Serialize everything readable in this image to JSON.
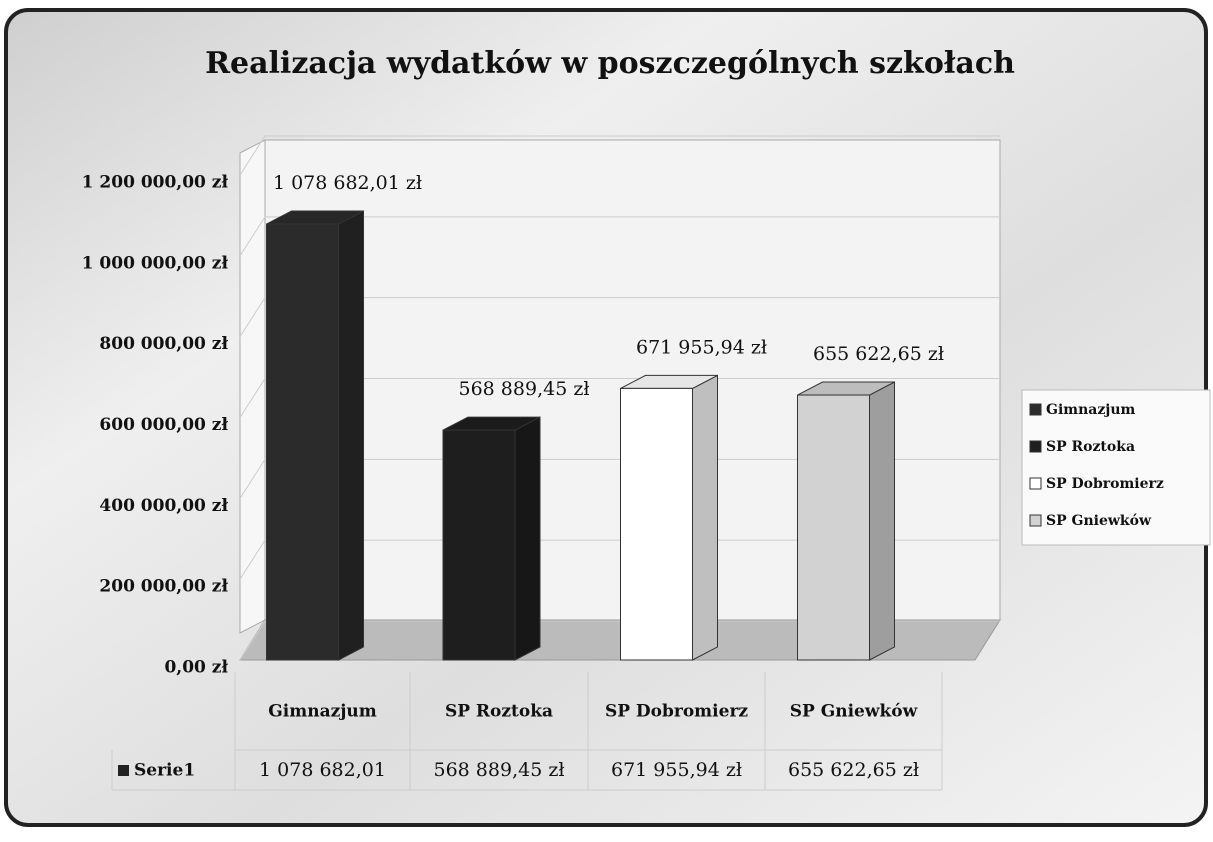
{
  "chart_data": {
    "type": "bar3d",
    "title": "Realizacja wydatków w poszczególnych szkołach",
    "categories": [
      "Gimnazjum",
      "SP Roztoka",
      "SP Dobromierz",
      "SP Gniewków"
    ],
    "colors": [
      "#2b2b2b",
      "#1e1e1e",
      "#ffffff",
      "#d2d2d2"
    ],
    "series": [
      {
        "name": "Serie1",
        "values": [
          1078682.01,
          568889.45,
          671955.94,
          655622.65
        ],
        "value_labels": [
          "1 078 682,01 zł",
          "568 889,45 zł",
          "671 955,94 zł",
          "655 622,65 zł"
        ],
        "table_labels": [
          "1 078 682,01",
          "568 889,45 zł",
          "671 955,94 zł",
          "655 622,65 zł"
        ]
      }
    ],
    "ylim": [
      0,
      1200000
    ],
    "yticks": [
      {
        "value": 0,
        "label": "0,00 zł"
      },
      {
        "value": 200000,
        "label": "200 000,00 zł"
      },
      {
        "value": 400000,
        "label": "400 000,00 zł"
      },
      {
        "value": 600000,
        "label": "600 000,00 zł"
      },
      {
        "value": 800000,
        "label": "800 000,00 zł"
      },
      {
        "value": 1000000,
        "label": "1 000 000,00 zł"
      },
      {
        "value": 1200000,
        "label": "1 200 000,00 zł"
      }
    ],
    "grid": true,
    "legend": "right",
    "data_table": true
  }
}
